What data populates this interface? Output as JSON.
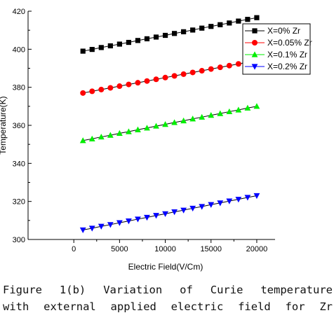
{
  "chart_data": {
    "type": "line",
    "xlabel": "Electric Field(V/Cm)",
    "ylabel": "Temperature(K)",
    "xlim": [
      -5000,
      22000
    ],
    "ylim": [
      300,
      420
    ],
    "xticks": [
      0,
      5000,
      10000,
      15000,
      20000
    ],
    "yticks": [
      300,
      320,
      340,
      360,
      380,
      400,
      420
    ],
    "legend_position": "top-right",
    "x": [
      1000,
      2000,
      3000,
      4000,
      5000,
      6000,
      7000,
      8000,
      9000,
      10000,
      11000,
      12000,
      13000,
      14000,
      15000,
      16000,
      17000,
      18000,
      19000,
      20000
    ],
    "series": [
      {
        "name": "X=0% Zr",
        "color": "#000000",
        "marker": "square",
        "values": [
          399,
          399.9,
          400.9,
          401.8,
          402.7,
          403.6,
          404.6,
          405.5,
          406.4,
          407.3,
          408.3,
          409.2,
          410.1,
          411.1,
          412,
          412.9,
          413.8,
          414.8,
          415.7,
          416.6
        ]
      },
      {
        "name": "X=0.05% Zr",
        "color": "#ff0000",
        "marker": "circle",
        "values": [
          377,
          377.9,
          378.8,
          379.7,
          380.6,
          381.5,
          382.4,
          383.3,
          384.2,
          385.1,
          386,
          386.9,
          387.8,
          388.7,
          389.6,
          390.5,
          391.4,
          392.3,
          393.2,
          394.1
        ]
      },
      {
        "name": "X=0.1% Zr",
        "color": "#00ee00",
        "marker": "triangle-up",
        "values": [
          352,
          352.9,
          353.9,
          354.8,
          355.8,
          356.7,
          357.7,
          358.6,
          359.6,
          360.5,
          361.5,
          362.4,
          363.4,
          364.3,
          365.3,
          366.2,
          367.2,
          368.1,
          369.1,
          370
        ]
      },
      {
        "name": "X=0.2% Zr",
        "color": "#0000ff",
        "marker": "triangle-down",
        "values": [
          305,
          305.9,
          306.9,
          307.8,
          308.8,
          309.7,
          310.7,
          311.6,
          312.6,
          313.5,
          314.5,
          315.4,
          316.4,
          317.3,
          318.3,
          319.2,
          320.2,
          321.1,
          322.1,
          323
        ]
      }
    ]
  },
  "caption": {
    "line1": "Figure 1(b) Variation of Curie temperature",
    "line2": "with external applied electric field for Zr"
  }
}
